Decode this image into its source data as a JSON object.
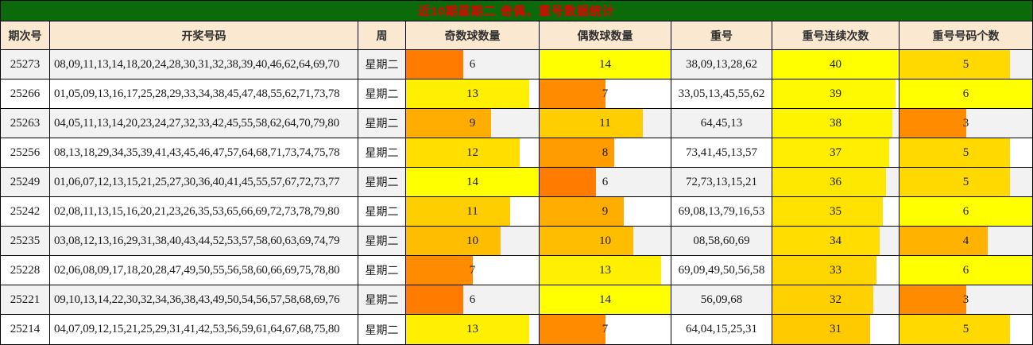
{
  "chart_data": {
    "type": "table",
    "title": "近10期星期二 奇偶，重号数据统计",
    "columns": [
      "期次号",
      "开奖号码",
      "周",
      "奇数球数量",
      "偶数球数量",
      "重号",
      "重号连续次数",
      "重号号码个数"
    ],
    "bar_max": {
      "odd": 14,
      "even": 14,
      "streak": 40,
      "count": 6
    },
    "rows": [
      {
        "period": "25273",
        "numbers": "08,09,11,13,14,18,20,24,28,30,31,32,38,39,40,46,62,64,69,70",
        "week": "星期二",
        "odd": 6,
        "even": 14,
        "repeats": "38,09,13,28,62",
        "streak": 40,
        "count": 5
      },
      {
        "period": "25266",
        "numbers": "01,05,09,13,16,17,25,28,29,33,34,38,45,47,48,55,62,71,73,78",
        "week": "星期二",
        "odd": 13,
        "even": 7,
        "repeats": "33,05,13,45,55,62",
        "streak": 39,
        "count": 6
      },
      {
        "period": "25263",
        "numbers": "04,05,11,13,14,20,23,24,27,32,33,42,45,55,58,62,64,70,79,80",
        "week": "星期二",
        "odd": 9,
        "even": 11,
        "repeats": "64,45,13",
        "streak": 38,
        "count": 3
      },
      {
        "period": "25256",
        "numbers": "08,13,18,29,34,35,39,41,43,45,46,47,57,64,68,71,73,74,75,78",
        "week": "星期二",
        "odd": 12,
        "even": 8,
        "repeats": "73,41,45,13,57",
        "streak": 37,
        "count": 5
      },
      {
        "period": "25249",
        "numbers": "01,06,07,12,13,15,21,25,27,30,36,40,41,45,55,57,67,72,73,77",
        "week": "星期二",
        "odd": 14,
        "even": 6,
        "repeats": "72,73,13,15,21",
        "streak": 36,
        "count": 5
      },
      {
        "period": "25242",
        "numbers": "02,08,11,13,15,16,20,21,23,26,35,53,65,66,69,72,73,78,79,80",
        "week": "星期二",
        "odd": 11,
        "even": 9,
        "repeats": "69,08,13,79,16,53",
        "streak": 35,
        "count": 6
      },
      {
        "period": "25235",
        "numbers": "03,08,12,13,16,29,31,38,40,43,44,52,53,57,58,60,63,69,74,79",
        "week": "星期二",
        "odd": 10,
        "even": 10,
        "repeats": "08,58,60,69",
        "streak": 34,
        "count": 4
      },
      {
        "period": "25228",
        "numbers": "02,06,08,09,17,18,20,28,47,49,50,55,56,58,60,66,69,75,78,80",
        "week": "星期二",
        "odd": 7,
        "even": 13,
        "repeats": "69,09,49,50,56,58",
        "streak": 33,
        "count": 6
      },
      {
        "period": "25221",
        "numbers": "09,10,13,14,22,30,32,34,36,38,43,49,50,54,56,57,58,68,69,76",
        "week": "星期二",
        "odd": 6,
        "even": 14,
        "repeats": "56,09,68",
        "streak": 32,
        "count": 3
      },
      {
        "period": "25214",
        "numbers": "04,07,09,12,15,21,25,29,31,41,42,53,56,59,61,64,67,68,75,80",
        "week": "星期二",
        "odd": 13,
        "even": 7,
        "repeats": "64,04,15,25,31",
        "streak": 31,
        "count": 5
      }
    ],
    "layout": {
      "colors": {
        "title_bg": "#0B6B0B",
        "title_text": "#E60000",
        "header_bg": "#FAE8D1",
        "stripe_bg": "#F2F2F2",
        "border": "#000000",
        "bar_low": "#FF7B00",
        "bar_high": "#FFFF00"
      }
    }
  }
}
